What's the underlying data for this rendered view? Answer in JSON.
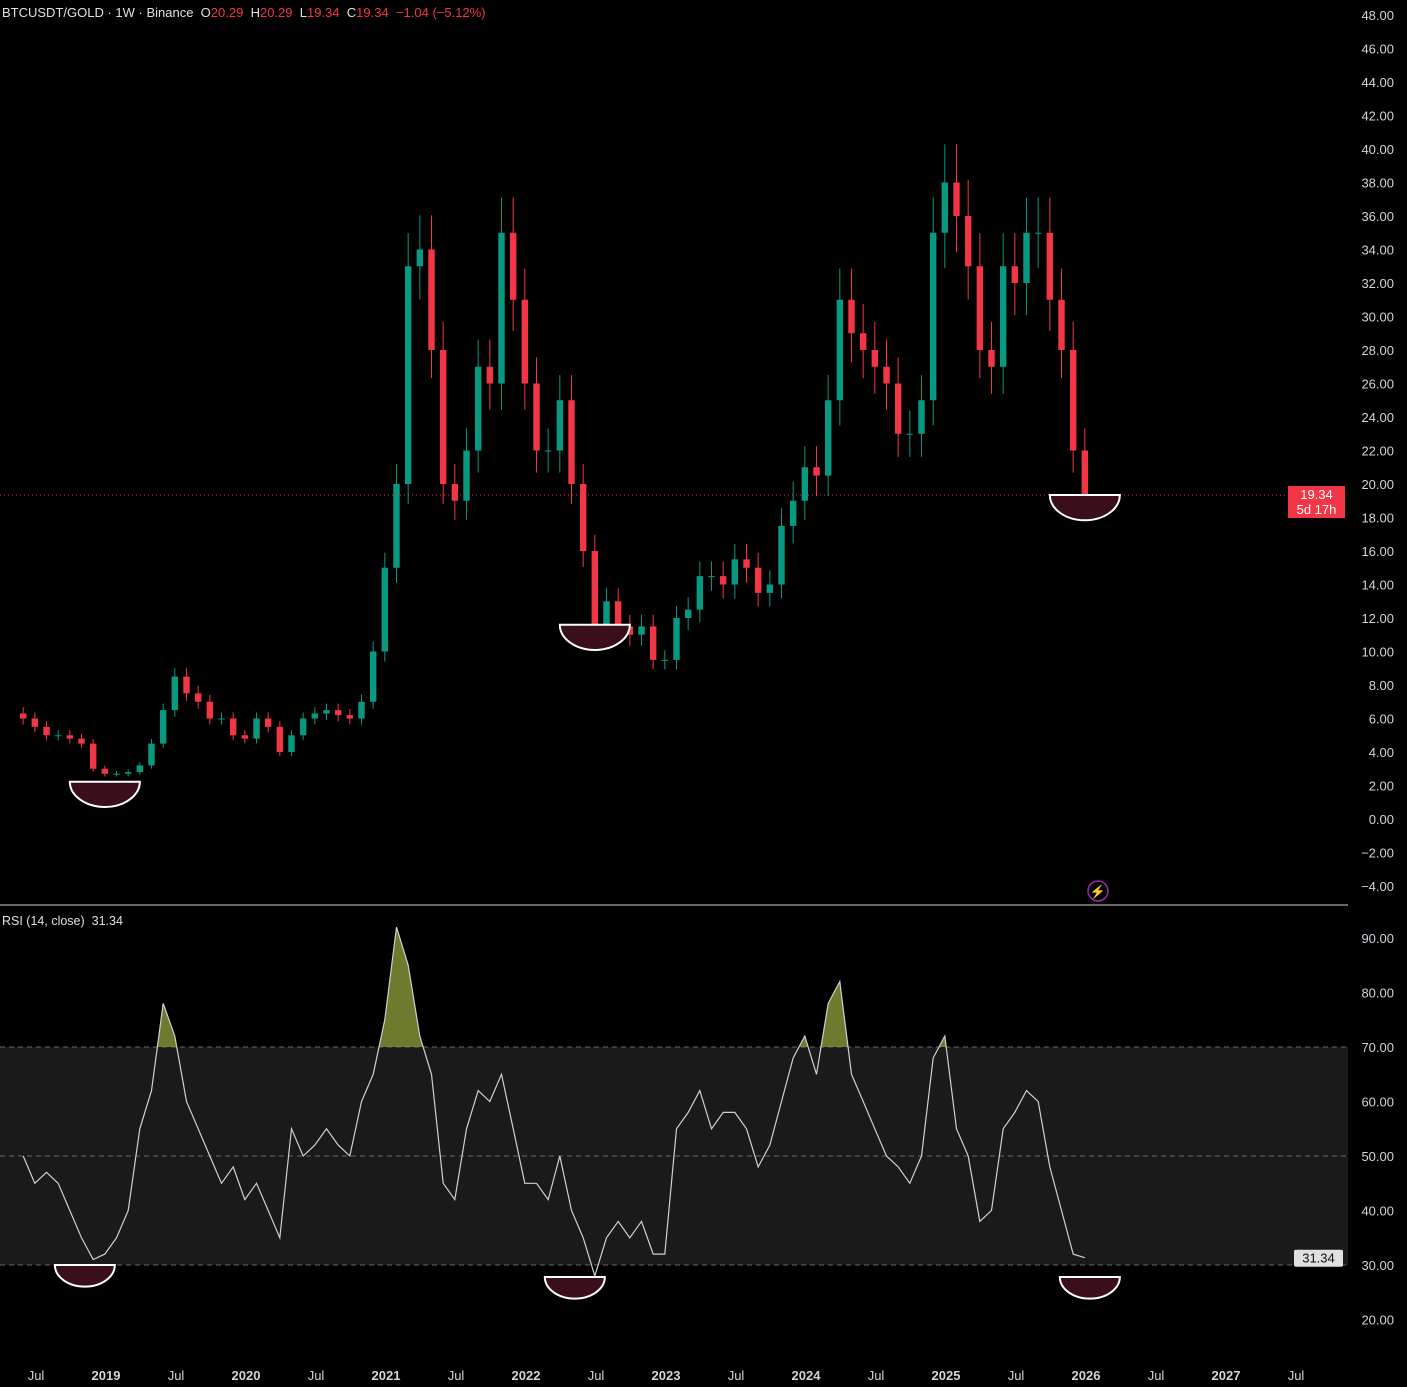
{
  "header": {
    "symbol": "BTCUSDT/GOLD · 1W · Binance",
    "o_label": "O",
    "o": "20.29",
    "h_label": "H",
    "h": "20.29",
    "l_label": "L",
    "l": "19.34",
    "c_label": "C",
    "c": "19.34",
    "change": "−1.04 (−5.12%)"
  },
  "price_badge": {
    "value": "19.34",
    "countdown": "5d 17h",
    "color": "#f23645"
  },
  "rsi_legend": {
    "name": "RSI (14, close)",
    "value": "31.34"
  },
  "colors": {
    "up": "#089981",
    "down": "#f23645",
    "rsi_line": "#d0d0d0",
    "overbought_fill": "#8a9a3a",
    "band": "#1a1a1a",
    "bottom_marker": "#3a0f1a"
  },
  "chart_data": [
    {
      "type": "candlestick",
      "interval": "1W (shown aggregated monthly)",
      "ylim": [
        -4,
        48
      ],
      "yticks": [
        "48.00",
        "46.00",
        "44.00",
        "42.00",
        "40.00",
        "38.00",
        "36.00",
        "34.00",
        "32.00",
        "30.00",
        "28.00",
        "26.00",
        "24.00",
        "22.00",
        "20.00",
        "18.00",
        "16.00",
        "14.00",
        "12.00",
        "10.00",
        "8.00",
        "6.00",
        "4.00",
        "2.00",
        "0.00",
        "−2.00",
        "−4.00"
      ],
      "start": "2018-05",
      "closes": [
        6,
        5.5,
        5,
        5,
        4.8,
        4.5,
        3,
        2.7,
        2.7,
        2.8,
        3.2,
        4.5,
        6.5,
        8.5,
        7.5,
        7,
        6,
        6,
        5,
        4.8,
        6,
        5.5,
        4,
        5,
        6,
        6.3,
        6.5,
        6.2,
        6,
        7,
        10,
        15,
        20,
        33,
        34,
        28,
        20,
        19,
        22,
        27,
        26,
        35,
        31,
        26,
        22,
        22,
        25,
        20,
        16,
        11,
        13,
        11.5,
        11,
        11.5,
        9.5,
        9.5,
        12,
        12.5,
        14.5,
        14.5,
        14,
        15.5,
        15,
        13.5,
        14,
        17.5,
        19,
        21,
        20.5,
        25,
        31,
        29,
        28,
        27,
        26,
        23,
        23,
        25,
        35,
        38,
        36,
        33,
        28,
        27,
        33,
        32,
        35,
        35,
        31,
        28,
        22,
        19.34
      ],
      "bottom_markers": [
        "2018-12",
        "2022-06",
        "2025-12"
      ]
    },
    {
      "type": "line",
      "name": "RSI (14, close)",
      "ylim": [
        15,
        95
      ],
      "levels": [
        70,
        50,
        30
      ],
      "yticks": [
        "90.00",
        "80.00",
        "70.00",
        "60.00",
        "50.00",
        "40.00",
        "30.00",
        "20.00"
      ],
      "start": "2018-05",
      "values": [
        50,
        45,
        47,
        45,
        40,
        35,
        31,
        32,
        35,
        40,
        55,
        62,
        78,
        72,
        60,
        55,
        50,
        45,
        48,
        42,
        45,
        40,
        35,
        55,
        50,
        52,
        55,
        52,
        50,
        60,
        65,
        75,
        92,
        85,
        72,
        65,
        45,
        42,
        55,
        62,
        60,
        65,
        55,
        45,
        45,
        42,
        50,
        40,
        35,
        28,
        35,
        38,
        35,
        38,
        32,
        32,
        55,
        58,
        62,
        55,
        58,
        58,
        55,
        48,
        52,
        60,
        68,
        72,
        65,
        78,
        82,
        65,
        60,
        55,
        50,
        48,
        45,
        50,
        68,
        72,
        55,
        50,
        38,
        40,
        55,
        58,
        62,
        60,
        48,
        40,
        32,
        31.34
      ]
    },
    {
      "xticks": [
        "Jul",
        "2019",
        "Jul",
        "2020",
        "Jul",
        "2021",
        "Jul",
        "2022",
        "Jul",
        "2023",
        "Jul",
        "2024",
        "Jul",
        "2025",
        "Jul",
        "2026",
        "Jul",
        "2027",
        "Jul"
      ]
    }
  ]
}
